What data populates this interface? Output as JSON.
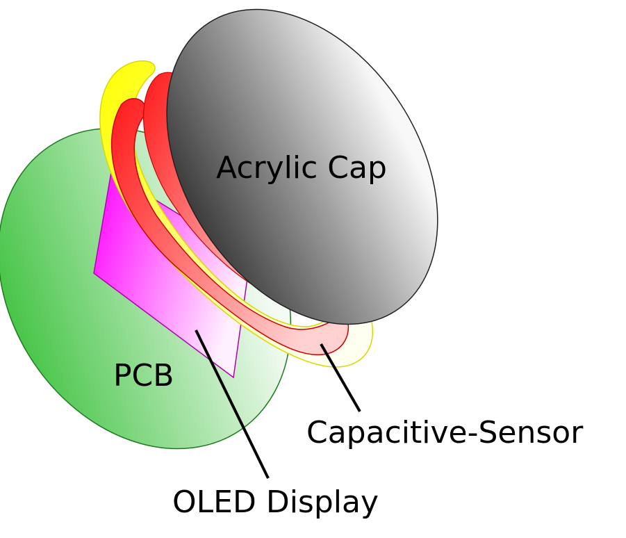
{
  "labels": {
    "acrylic_cap": "Acrylic Cap",
    "pcb": "PCB",
    "oled_display": "OLED Display",
    "capacitive_sensor": "Capacitive-Sensor"
  },
  "colors": {
    "pcb_green": "#3cc23c",
    "oled_magenta": "#ff00ff",
    "sensor_red": "#ff2a2a",
    "sensor_yellow": "#ffff00",
    "acrylic_dark": "#3a3a3a",
    "acrylic_light": "#f4f4f4"
  }
}
